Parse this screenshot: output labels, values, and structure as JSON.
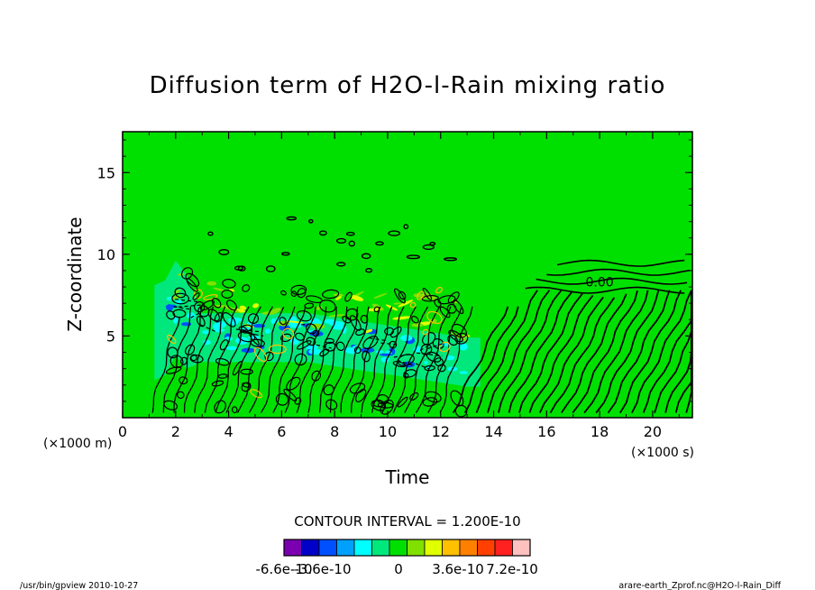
{
  "chart_data": {
    "type": "heatmap",
    "title": "Diffusion term of H2O-l-Rain mixing ratio",
    "xlabel": "Time",
    "ylabel": "Z-coordinate",
    "x_unit": "(×1000 s)",
    "y_unit": "(×1000 m)",
    "xlim": [
      0,
      21.5
    ],
    "ylim": [
      0,
      17.5
    ],
    "x_ticks": [
      0,
      2,
      4,
      6,
      8,
      10,
      12,
      14,
      16,
      18,
      20
    ],
    "x_tick_labels": [
      "0",
      "2",
      "4",
      "6",
      "8",
      "10",
      "12",
      "14",
      "16",
      "18",
      "20"
    ],
    "y_ticks": [
      5,
      10,
      15
    ],
    "y_tick_labels": [
      "5",
      "10",
      "15"
    ],
    "contour_interval_text": "CONTOUR INTERVAL = 1.200E-10",
    "contour_label": "0.00",
    "contour_label_pos": [
      18.0,
      8.3
    ],
    "grid": false,
    "active_region": {
      "x_range": [
        1.0,
        21.5
      ],
      "peak_height_top": [
        [
          0.5,
          4.0
        ],
        [
          2.0,
          9.5
        ],
        [
          4.0,
          8.5
        ],
        [
          6.0,
          8.5
        ],
        [
          8.0,
          8.0
        ],
        [
          10.0,
          8.2
        ],
        [
          12.0,
          8.0
        ],
        [
          14.0,
          7.5
        ],
        [
          16.0,
          7.0
        ],
        [
          18.0,
          8.0
        ],
        [
          21.5,
          9.0
        ]
      ],
      "negative_core": [
        [
          1.5,
          5.5
        ],
        [
          2.0,
          7.0
        ],
        [
          3.0,
          5.0
        ],
        [
          5.0,
          5.0
        ],
        [
          7.0,
          5.0
        ],
        [
          9.0,
          4.5
        ],
        [
          11.0,
          4.0
        ],
        [
          13.0,
          3.5
        ]
      ]
    },
    "colorbar": {
      "colors": [
        "#7a00b0",
        "#0000c8",
        "#0050ff",
        "#00a0ff",
        "#00ffff",
        "#00e87c",
        "#00e000",
        "#80e000",
        "#e0ff00",
        "#ffc000",
        "#ff8000",
        "#ff4000",
        "#ff2020",
        "#ffc0c0"
      ],
      "tick_labels": [
        "-6.6e-10",
        "-3.6e-10",
        "0",
        "3.6e-10",
        "7.2e-10"
      ]
    }
  },
  "footer": {
    "left": "/usr/bin/gpview  2010-10-27",
    "right": "arare-earth_Zprof.nc@H2O-l-Rain_Diff"
  }
}
